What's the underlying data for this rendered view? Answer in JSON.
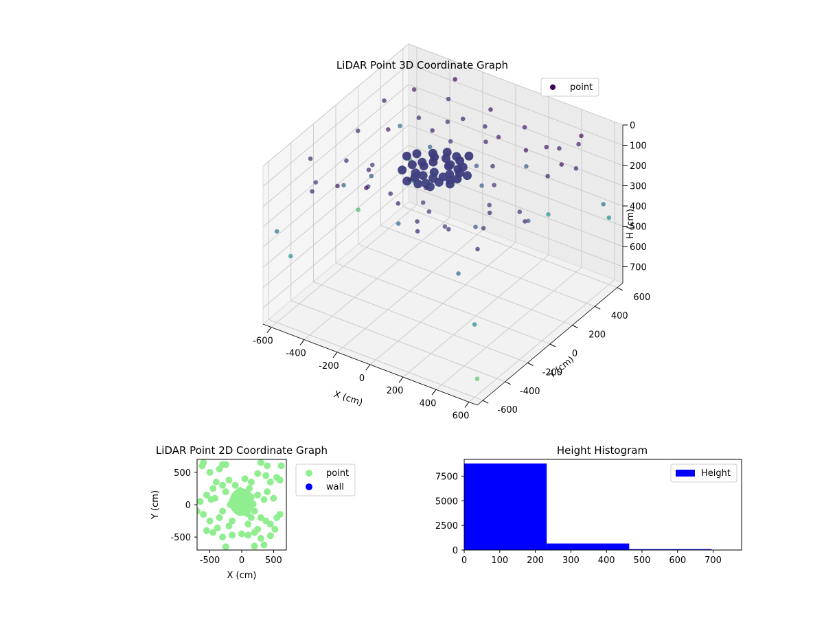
{
  "chart_data": [
    {
      "type": "scatter",
      "projection": "3d",
      "title": "LiDAR Point 3D Coordinate Graph",
      "xlabel": "X (cm)",
      "ylabel": "Y (cm)",
      "zlabel": "H (cm)",
      "xlim": [
        -650,
        650
      ],
      "ylim": [
        -650,
        650
      ],
      "zlim": [
        0,
        780
      ],
      "z_axis_inverted": true,
      "xticks": [
        -600,
        -400,
        -200,
        0,
        200,
        400,
        600
      ],
      "yticks": [
        -600,
        -400,
        -200,
        0,
        200,
        400,
        600
      ],
      "zticks": [
        0,
        100,
        200,
        300,
        400,
        500,
        600,
        700
      ],
      "colormap": "viridis",
      "grid": true,
      "legend": {
        "placement": "top-right",
        "entries": [
          {
            "label": "point",
            "color": "#440154"
          }
        ]
      },
      "series": [
        {
          "name": "point",
          "cluster_points": [
            [
              -150,
              50,
              170
            ],
            [
              -120,
              90,
              160
            ],
            [
              -80,
              40,
              175
            ],
            [
              -40,
              110,
              165
            ],
            [
              0,
              60,
              170
            ],
            [
              -160,
              -10,
              180
            ],
            [
              -100,
              -30,
              165
            ],
            [
              -60,
              0,
              180
            ],
            [
              -20,
              30,
              175
            ],
            [
              30,
              20,
              170
            ],
            [
              -140,
              130,
              160
            ],
            [
              -90,
              160,
              165
            ],
            [
              -50,
              140,
              175
            ],
            [
              10,
              120,
              170
            ],
            [
              40,
              90,
              165
            ],
            [
              -180,
              80,
              175
            ],
            [
              -130,
              -60,
              170
            ],
            [
              -70,
              -50,
              185
            ],
            [
              -10,
              -20,
              175
            ],
            [
              50,
              -10,
              170
            ],
            [
              -200,
              20,
              165
            ],
            [
              -110,
              200,
              160
            ],
            [
              -60,
              210,
              170
            ],
            [
              -20,
              180,
              165
            ],
            [
              20,
              150,
              170
            ],
            [
              -170,
              160,
              165
            ],
            [
              -240,
              120,
              170
            ],
            [
              -90,
              -90,
              175
            ],
            [
              -30,
              -70,
              180
            ],
            [
              60,
              40,
              165
            ],
            [
              -260,
              60,
              160
            ],
            [
              -220,
              -40,
              170
            ],
            [
              -150,
              -100,
              175
            ],
            [
              80,
              100,
              170
            ],
            [
              -5,
              240,
              165
            ]
          ],
          "points": [
            [
              -500,
              -400,
              150
            ],
            [
              -450,
              -200,
              120
            ],
            [
              -400,
              100,
              90
            ],
            [
              -350,
              300,
              110
            ],
            [
              -300,
              -500,
              60
            ],
            [
              -250,
              -300,
              140
            ],
            [
              -200,
              200,
              80
            ],
            [
              -150,
              400,
              100
            ],
            [
              -100,
              -150,
              130
            ],
            [
              -50,
              500,
              70
            ],
            [
              0,
              -400,
              100
            ],
            [
              50,
              -250,
              150
            ],
            [
              100,
              350,
              90
            ],
            [
              150,
              -450,
              120
            ],
            [
              200,
              150,
              110
            ],
            [
              250,
              -350,
              160
            ],
            [
              300,
              300,
              70
            ],
            [
              350,
              -100,
              140
            ],
            [
              400,
              450,
              100
            ],
            [
              450,
              -300,
              130
            ],
            [
              500,
              200,
              90
            ],
            [
              550,
              -500,
              110
            ],
            [
              -550,
              50,
              120
            ],
            [
              -480,
              450,
              80
            ],
            [
              -420,
              -550,
              100
            ],
            [
              -360,
              -100,
              160
            ],
            [
              -320,
              520,
              110
            ],
            [
              -280,
              -250,
              90
            ],
            [
              -230,
              380,
              130
            ],
            [
              -180,
              -420,
              70
            ],
            [
              -130,
              260,
              140
            ],
            [
              -80,
              -350,
              100
            ],
            [
              -30,
              420,
              110
            ],
            [
              20,
              -180,
              120
            ],
            [
              70,
              280,
              90
            ],
            [
              120,
              -300,
              150
            ],
            [
              170,
              480,
              80
            ],
            [
              220,
              -550,
              100
            ],
            [
              270,
              60,
              140
            ],
            [
              320,
              -420,
              120
            ],
            [
              370,
              380,
              70
            ],
            [
              420,
              -200,
              110
            ],
            [
              470,
              520,
              90
            ],
            [
              520,
              -80,
              130
            ],
            [
              570,
              350,
              100
            ],
            [
              -600,
              -300,
              110
            ],
            [
              -560,
              300,
              90
            ],
            [
              600,
              -150,
              120
            ],
            [
              -400,
              -50,
              250
            ],
            [
              -250,
              150,
              280
            ],
            [
              -100,
              -250,
              300
            ],
            [
              100,
              200,
              260
            ],
            [
              300,
              -150,
              240
            ],
            [
              450,
              100,
              280
            ],
            [
              -350,
              400,
              300
            ],
            [
              200,
              450,
              250
            ],
            [
              -500,
              -150,
              280
            ],
            [
              400,
              -450,
              300
            ],
            [
              0,
              300,
              240
            ],
            [
              -600,
              500,
              320
            ],
            [
              600,
              550,
              360
            ],
            [
              -600,
              -600,
              330
            ],
            [
              500,
              500,
              30
            ],
            [
              -300,
              550,
              20
            ],
            [
              550,
              250,
              40
            ],
            [
              -450,
              400,
              500
            ],
            [
              300,
              500,
              480
            ],
            [
              -550,
              -550,
              460
            ],
            [
              -620,
              620,
              550
            ],
            [
              600,
              600,
              450
            ],
            [
              600,
              -600,
              420
            ],
            [
              -650,
              200,
              610
            ],
            [
              650,
              -650,
              650
            ]
          ]
        }
      ]
    },
    {
      "type": "scatter",
      "title": "LiDAR Point 2D Coordinate Graph",
      "xlabel": "X (cm)",
      "ylabel": "Y (cm)",
      "xlim": [
        -700,
        700
      ],
      "ylim": [
        -700,
        700
      ],
      "xticks": [
        -500,
        0,
        500
      ],
      "yticks": [
        -500,
        0,
        500
      ],
      "legend": {
        "placement": "outside-right",
        "entries": [
          {
            "label": "point",
            "color": "#90ee90"
          },
          {
            "label": "wall",
            "color": "#0000ff"
          }
        ]
      },
      "series": [
        {
          "name": "point",
          "points": [
            [
              -600,
              650
            ],
            [
              -500,
              500
            ],
            [
              -400,
              350
            ],
            [
              -300,
              300
            ],
            [
              -200,
              380
            ],
            [
              -100,
              300
            ],
            [
              50,
              400
            ],
            [
              150,
              350
            ],
            [
              250,
              480
            ],
            [
              400,
              600
            ],
            [
              -350,
              550
            ],
            [
              -250,
              620
            ],
            [
              300,
              650
            ],
            [
              550,
              420
            ],
            [
              -650,
              50
            ],
            [
              -550,
              150
            ],
            [
              -480,
              80
            ],
            [
              -600,
              -150
            ],
            [
              -500,
              -250
            ],
            [
              -550,
              -400
            ],
            [
              -450,
              -430
            ],
            [
              -380,
              -360
            ],
            [
              -300,
              -500
            ],
            [
              -250,
              -650
            ],
            [
              -150,
              -470
            ],
            [
              0,
              -450
            ],
            [
              100,
              -470
            ],
            [
              200,
              -430
            ],
            [
              300,
              -520
            ],
            [
              350,
              -620
            ],
            [
              450,
              -480
            ],
            [
              520,
              -380
            ],
            [
              600,
              -150
            ],
            [
              550,
              -200
            ],
            [
              450,
              -300
            ],
            [
              380,
              -250
            ],
            [
              300,
              -200
            ],
            [
              400,
              200
            ],
            [
              500,
              100
            ],
            [
              350,
              80
            ],
            [
              250,
              150
            ],
            [
              200,
              -100
            ],
            [
              -350,
              -200
            ],
            [
              -300,
              -100
            ],
            [
              -420,
              100
            ],
            [
              -250,
              200
            ],
            [
              120,
              250
            ],
            [
              -150,
              -250
            ],
            [
              100,
              -300
            ],
            [
              -200,
              -330
            ],
            [
              250,
              -380
            ],
            [
              -50,
              200
            ],
            [
              150,
              -200
            ],
            [
              450,
              350
            ],
            [
              380,
              450
            ],
            [
              -450,
              250
            ],
            [
              -620,
              600
            ],
            [
              620,
              600
            ],
            [
              -700,
              -100
            ],
            [
              -300,
              620
            ],
            [
              200,
              -640
            ],
            [
              600,
              380
            ]
          ],
          "cluster_points": [
            [
              -150,
              50
            ],
            [
              -100,
              100
            ],
            [
              -50,
              40
            ],
            [
              0,
              80
            ],
            [
              50,
              30
            ],
            [
              100,
              60
            ],
            [
              -120,
              -30
            ],
            [
              -60,
              -60
            ],
            [
              0,
              -40
            ],
            [
              60,
              -50
            ],
            [
              120,
              -20
            ],
            [
              -90,
              160
            ],
            [
              -30,
              140
            ],
            [
              40,
              160
            ],
            [
              150,
              120
            ],
            [
              -180,
              0
            ],
            [
              180,
              10
            ],
            [
              -40,
              -120
            ],
            [
              40,
              -110
            ],
            [
              0,
              0
            ],
            [
              -20,
              220
            ],
            [
              90,
              -140
            ]
          ]
        },
        {
          "name": "wall",
          "points": []
        }
      ]
    },
    {
      "type": "bar",
      "subtype": "histogram",
      "title": "Height Histogram",
      "xlim": [
        0,
        780
      ],
      "ylim": [
        0,
        9200
      ],
      "xticks": [
        0,
        100,
        200,
        300,
        400,
        500,
        600,
        700
      ],
      "yticks": [
        0,
        2500,
        5000,
        7500
      ],
      "legend": {
        "placement": "top-right",
        "entries": [
          {
            "label": "Height",
            "color": "#0000ff"
          }
        ]
      },
      "bin_edges": [
        0,
        232,
        464,
        696
      ],
      "values": [
        8780,
        660,
        90
      ],
      "series": [
        {
          "name": "Height",
          "values": [
            8780,
            660,
            90
          ]
        }
      ]
    }
  ]
}
